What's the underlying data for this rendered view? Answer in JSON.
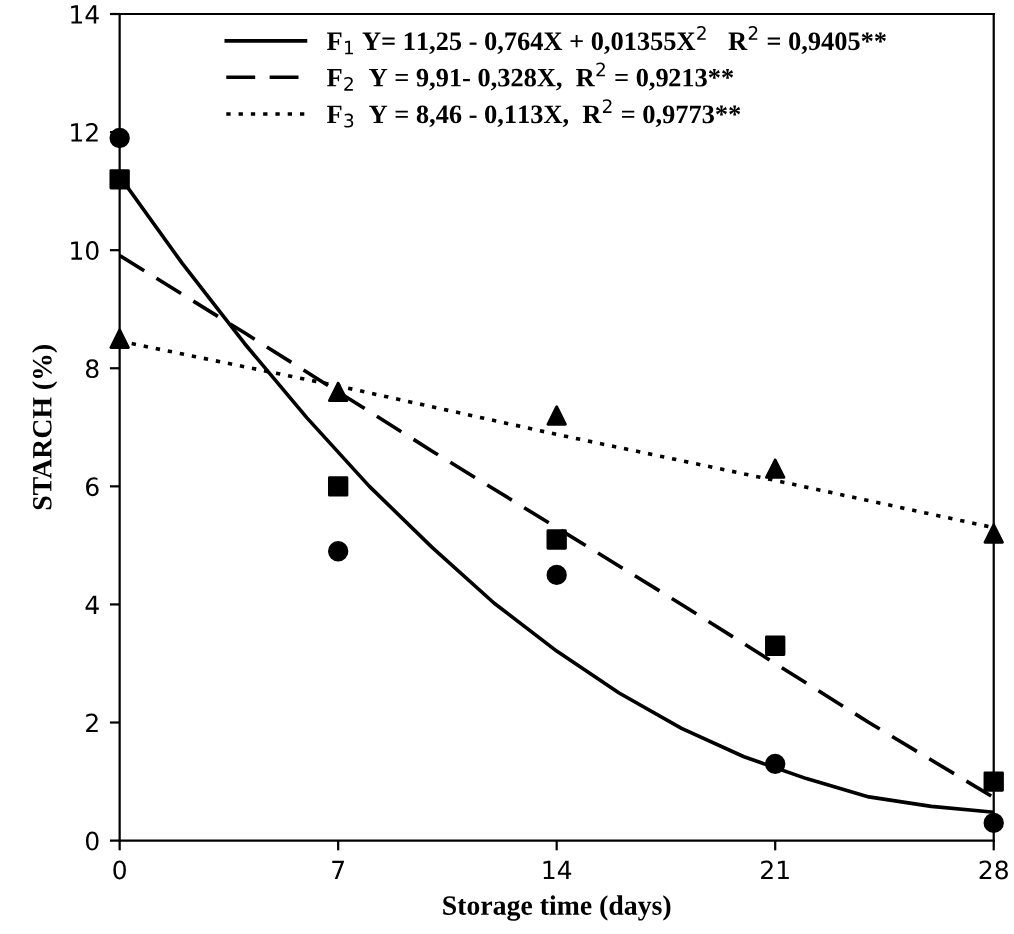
{
  "chart_data": {
    "type": "line",
    "xlabel": "Storage time (days)",
    "ylabel": "STARCH (%)",
    "xlim": [
      0,
      28
    ],
    "xticks": [
      0,
      7,
      14,
      21,
      28
    ],
    "ylim": [
      0,
      14
    ],
    "yticks": [
      0,
      2,
      4,
      6,
      8,
      10,
      12,
      14
    ],
    "grid": false,
    "legend": "top",
    "series": [
      {
        "name": "F$_{1}$ Y= 11,25 - 0,764X + 0,01355X$^{2}$   R$^{2}$ = 0,9405**",
        "line_style": "solid",
        "marker": "none",
        "color": "#000000",
        "x": [
          0,
          2,
          4,
          6,
          8,
          10,
          12,
          14,
          16,
          18,
          20,
          22,
          24,
          26,
          28
        ],
        "values": [
          11.25,
          9.78,
          8.42,
          7.16,
          6.0,
          4.97,
          4.02,
          3.21,
          2.5,
          1.9,
          1.42,
          1.05,
          0.74,
          0.58,
          0.48
        ]
      },
      {
        "name": "F$_{2}$  Y = 9,91- 0,328X,  R$^{2}$ = 0,9213**",
        "line_style": "dashed",
        "marker": "none",
        "color": "#000000",
        "x": [
          0,
          4,
          7,
          10,
          14,
          18,
          21,
          24,
          28
        ],
        "values": [
          9.91,
          8.6,
          7.6,
          6.6,
          5.3,
          4.0,
          3.0,
          2.0,
          0.73
        ]
      },
      {
        "name": "F$_{3}$  Y = 8,46 - 0,113X,  R$^{2}$ = 0,9773**",
        "line_style": "dotted",
        "marker": "none",
        "color": "#000000",
        "x": [
          0,
          7,
          14,
          21,
          28
        ],
        "values": [
          8.46,
          7.7,
          6.88,
          6.1,
          5.3
        ]
      },
      {
        "type": "scatter",
        "marker": "circle",
        "color": "#000000",
        "x": [
          0,
          7,
          14,
          21,
          28
        ],
        "values": [
          11.9,
          4.9,
          4.5,
          1.3,
          0.3
        ]
      },
      {
        "type": "scatter",
        "marker": "square",
        "color": "#000000",
        "x": [
          0,
          7,
          14,
          21,
          28
        ],
        "values": [
          11.2,
          6.0,
          5.1,
          3.3,
          1.0
        ]
      },
      {
        "type": "scatter",
        "marker": "triangle",
        "color": "#000000",
        "x": [
          0,
          7,
          14,
          21,
          28
        ],
        "values": [
          8.5,
          7.6,
          7.2,
          6.3,
          5.2
        ]
      }
    ]
  }
}
